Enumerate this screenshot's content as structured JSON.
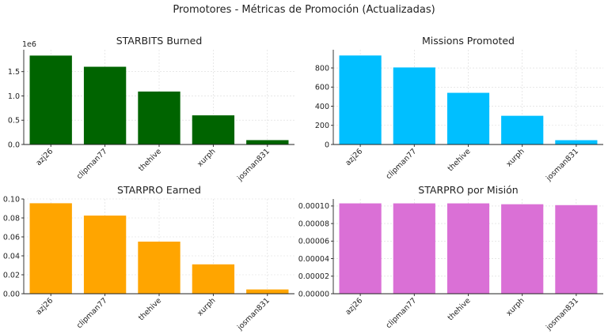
{
  "figure": {
    "suptitle": "Promotores - Métricas de Promoción (Actualizadas)"
  },
  "chart_data": [
    {
      "type": "bar",
      "title": "STARBITS Burned",
      "categories": [
        "azj26",
        "clipman77",
        "thehive",
        "xurph",
        "josman831"
      ],
      "values": [
        1830000,
        1600000,
        1090000,
        600000,
        90000
      ],
      "ylim": [
        0,
        1950000
      ],
      "yticks": [
        0,
        500000,
        1000000,
        1500000
      ],
      "ytick_labels": [
        "0.0",
        "0.5",
        "1.0",
        "1.5"
      ],
      "offset_text": "1e6",
      "color": "#006400",
      "grid": true
    },
    {
      "type": "bar",
      "title": "Missions Promoted",
      "categories": [
        "azj26",
        "clipman77",
        "thehive",
        "xurph",
        "josman831"
      ],
      "values": [
        930,
        805,
        540,
        300,
        45
      ],
      "ylim": [
        0,
        990
      ],
      "yticks": [
        0,
        200,
        400,
        600,
        800
      ],
      "ytick_labels": [
        "0",
        "200",
        "400",
        "600",
        "800"
      ],
      "color": "#00BFFF",
      "grid": true
    },
    {
      "type": "bar",
      "title": "STARPRO Earned",
      "categories": [
        "azj26",
        "clipman77",
        "thehive",
        "xurph",
        "josman831"
      ],
      "values": [
        0.0955,
        0.0825,
        0.055,
        0.031,
        0.0045
      ],
      "ylim": [
        0,
        0.1
      ],
      "yticks": [
        0,
        0.02,
        0.04,
        0.06,
        0.08,
        0.1
      ],
      "ytick_labels": [
        "0.00",
        "0.02",
        "0.04",
        "0.06",
        "0.08",
        "0.10"
      ],
      "color": "#FFA500",
      "grid": true
    },
    {
      "type": "bar",
      "title": "STARPRO por Misión",
      "categories": [
        "azj26",
        "clipman77",
        "thehive",
        "xurph",
        "josman831"
      ],
      "values": [
        0.000103,
        0.000103,
        0.000103,
        0.000102,
        0.000101
      ],
      "ylim": [
        0,
        0.000108
      ],
      "yticks": [
        0,
        2e-05,
        4e-05,
        6e-05,
        8e-05,
        0.0001
      ],
      "ytick_labels": [
        "0.00000",
        "0.00002",
        "0.00004",
        "0.00006",
        "0.00008",
        "0.00010"
      ],
      "color": "#DA70D6",
      "grid": true
    }
  ]
}
